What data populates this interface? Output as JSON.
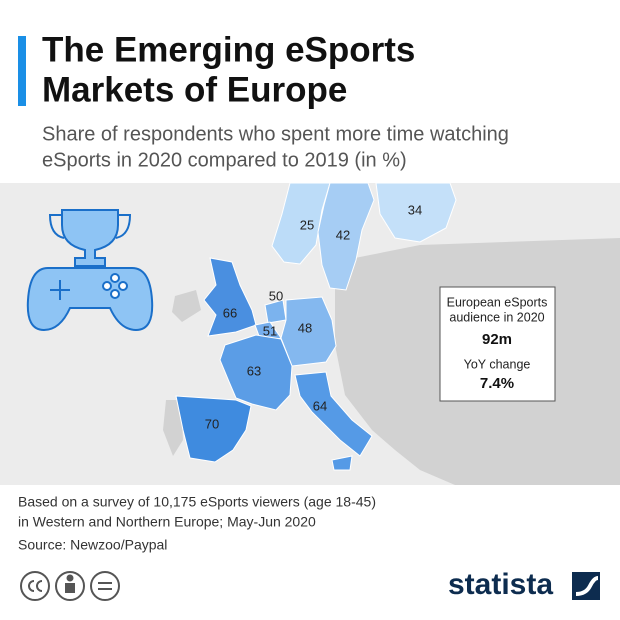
{
  "header": {
    "title_lines": [
      "The Emerging eSports",
      "Markets of Europe"
    ],
    "subtitle_lines": [
      "Share of respondents who spent more time watching",
      "eSports in 2020 compared to 2019 (in %)"
    ]
  },
  "map": {
    "regions": [
      {
        "value": 25
      },
      {
        "value": 42
      },
      {
        "value": 34
      },
      {
        "value": 66
      },
      {
        "value": 50
      },
      {
        "value": 51
      },
      {
        "value": 48
      },
      {
        "value": 63
      },
      {
        "value": 70
      },
      {
        "value": 64
      }
    ]
  },
  "info_box": {
    "audience_label_lines": [
      "European eSports",
      "audience in 2020"
    ],
    "audience_value": "92m",
    "change_label": "YoY change",
    "change_value": "7.4%"
  },
  "footer": {
    "note_lines": [
      "Based on a survey of 10,175 eSports viewers (age 18-45)",
      "in Western and Northern Europe; May-Jun 2020"
    ],
    "source": "Source: Newzoo/Paypal",
    "brand": "statista"
  }
}
